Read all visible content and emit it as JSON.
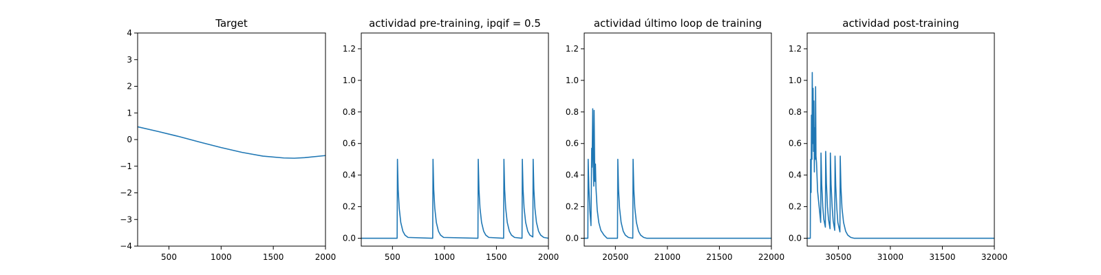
{
  "figure": {
    "series_color": "#1f77b4",
    "axis_color": "#000000",
    "background": "#ffffff"
  },
  "chart_data": [
    {
      "type": "line",
      "title": "Target",
      "xlim": [
        200,
        2000
      ],
      "ylim": [
        -4,
        4
      ],
      "xticks": [
        500,
        1000,
        1500,
        2000
      ],
      "xtick_labels": [
        "500",
        "1000",
        "1500",
        "2000"
      ],
      "yticks": [
        -4,
        -3,
        -2,
        -1,
        0,
        1,
        2,
        3,
        4
      ],
      "ytick_labels": [
        "−4",
        "−3",
        "−2",
        "−1",
        "0",
        "1",
        "2",
        "3",
        "4"
      ],
      "grid": false,
      "series": [
        {
          "x": [
            200,
            400,
            600,
            800,
            1000,
            1200,
            1400,
            1600,
            1700,
            1800,
            2000
          ],
          "y": [
            0.48,
            0.3,
            0.11,
            -0.1,
            -0.3,
            -0.48,
            -0.62,
            -0.69,
            -0.7,
            -0.68,
            -0.6
          ]
        }
      ]
    },
    {
      "type": "line",
      "title": "actividad pre-training, ipqif = 0.5",
      "xlim": [
        200,
        2000
      ],
      "ylim": [
        -0.05,
        1.3
      ],
      "xticks": [
        500,
        1000,
        1500,
        2000
      ],
      "xtick_labels": [
        "500",
        "1000",
        "1500",
        "2000"
      ],
      "yticks": [
        0.0,
        0.2,
        0.4,
        0.6,
        0.8,
        1.0,
        1.2
      ],
      "ytick_labels": [
        "0.0",
        "0.2",
        "0.4",
        "0.6",
        "0.8",
        "1.0",
        "1.2"
      ],
      "grid": false,
      "series": [
        {
          "x": [
            200,
            545,
            548,
            555,
            565,
            580,
            600,
            620,
            650,
            887,
            890,
            897,
            907,
            922,
            942,
            962,
            992,
            1322,
            1325,
            1332,
            1342,
            1357,
            1377,
            1397,
            1427,
            1569,
            1572,
            1579,
            1589,
            1604,
            1624,
            1644,
            1674,
            1746,
            1749,
            1756,
            1766,
            1781,
            1801,
            1821,
            1850,
            1853,
            1860,
            1870,
            1885,
            1905,
            1925,
            1955,
            2000
          ],
          "y": [
            0,
            0,
            0.5,
            0.31,
            0.19,
            0.1,
            0.045,
            0.02,
            0.005,
            0,
            0.5,
            0.31,
            0.19,
            0.1,
            0.045,
            0.02,
            0.005,
            0,
            0.5,
            0.31,
            0.19,
            0.1,
            0.045,
            0.02,
            0.005,
            0,
            0.5,
            0.31,
            0.19,
            0.1,
            0.045,
            0.02,
            0.005,
            0,
            0.5,
            0.31,
            0.19,
            0.1,
            0.045,
            0.02,
            0.008,
            0.5,
            0.31,
            0.19,
            0.1,
            0.045,
            0.02,
            0.005,
            0
          ]
        }
      ]
    },
    {
      "type": "line",
      "title": "actividad último loop de training",
      "xlim": [
        20200,
        22000
      ],
      "ylim": [
        -0.05,
        1.3
      ],
      "xticks": [
        20500,
        21000,
        21500,
        22000
      ],
      "xtick_labels": [
        "20500",
        "21000",
        "21500",
        "22000"
      ],
      "yticks": [
        0.0,
        0.2,
        0.4,
        0.6,
        0.8,
        1.0,
        1.2
      ],
      "ytick_labels": [
        "0.0",
        "0.2",
        "0.4",
        "0.6",
        "0.8",
        "1.0",
        "1.2"
      ],
      "grid": false,
      "series": [
        {
          "x": [
            20200,
            20235,
            20238,
            20245,
            20255,
            20265,
            20272,
            20275,
            20282,
            20285,
            20292,
            20295,
            20300,
            20303,
            20308,
            20313,
            20325,
            20340,
            20360,
            20390,
            20420,
            20520,
            20523,
            20530,
            20540,
            20555,
            20575,
            20595,
            20625,
            20667,
            20670,
            20677,
            20687,
            20702,
            20722,
            20742,
            20772,
            20800,
            22000
          ],
          "y": [
            0,
            0,
            0.5,
            0.32,
            0.17,
            0.08,
            0.57,
            0.45,
            0.82,
            0.55,
            0.33,
            0.81,
            0.5,
            0.36,
            0.47,
            0.32,
            0.18,
            0.1,
            0.05,
            0.02,
            0,
            0,
            0.5,
            0.31,
            0.19,
            0.1,
            0.045,
            0.02,
            0.005,
            0,
            0.5,
            0.31,
            0.19,
            0.1,
            0.045,
            0.02,
            0.005,
            0,
            0
          ]
        }
      ]
    },
    {
      "type": "line",
      "title": "actividad post-training",
      "xlim": [
        30200,
        32000
      ],
      "ylim": [
        -0.05,
        1.3
      ],
      "xticks": [
        30500,
        31000,
        31500,
        32000
      ],
      "xtick_labels": [
        "30500",
        "31000",
        "31500",
        "32000"
      ],
      "yticks": [
        0.0,
        0.2,
        0.4,
        0.6,
        0.8,
        1.0,
        1.2
      ],
      "ytick_labels": [
        "0.0",
        "0.2",
        "0.4",
        "0.6",
        "0.8",
        "1.0",
        "1.2"
      ],
      "grid": false,
      "series": [
        {
          "x": [
            30200,
            30230,
            30233,
            30238,
            30241,
            30246,
            30249,
            30253,
            30257,
            30261,
            30265,
            30269,
            30273,
            30277,
            30281,
            30285,
            30290,
            30300,
            30330,
            30333,
            30340,
            30350,
            30360,
            30375,
            30378,
            30385,
            30395,
            30405,
            30420,
            30423,
            30430,
            30440,
            30450,
            30465,
            30468,
            30475,
            30485,
            30495,
            30515,
            30518,
            30525,
            30535,
            30550,
            30570,
            30590,
            30620,
            30650,
            32000
          ],
          "y": [
            0,
            0,
            0.5,
            0.29,
            0.78,
            0.5,
            1.05,
            0.6,
            0.95,
            0.55,
            0.87,
            0.42,
            0.7,
            0.5,
            0.96,
            0.52,
            0.48,
            0.3,
            0.1,
            0.54,
            0.34,
            0.2,
            0.12,
            0.07,
            0.55,
            0.35,
            0.2,
            0.12,
            0.06,
            0.54,
            0.34,
            0.2,
            0.11,
            0.05,
            0.52,
            0.33,
            0.19,
            0.1,
            0.04,
            0.52,
            0.32,
            0.19,
            0.1,
            0.045,
            0.02,
            0.005,
            0,
            0
          ]
        }
      ]
    }
  ]
}
